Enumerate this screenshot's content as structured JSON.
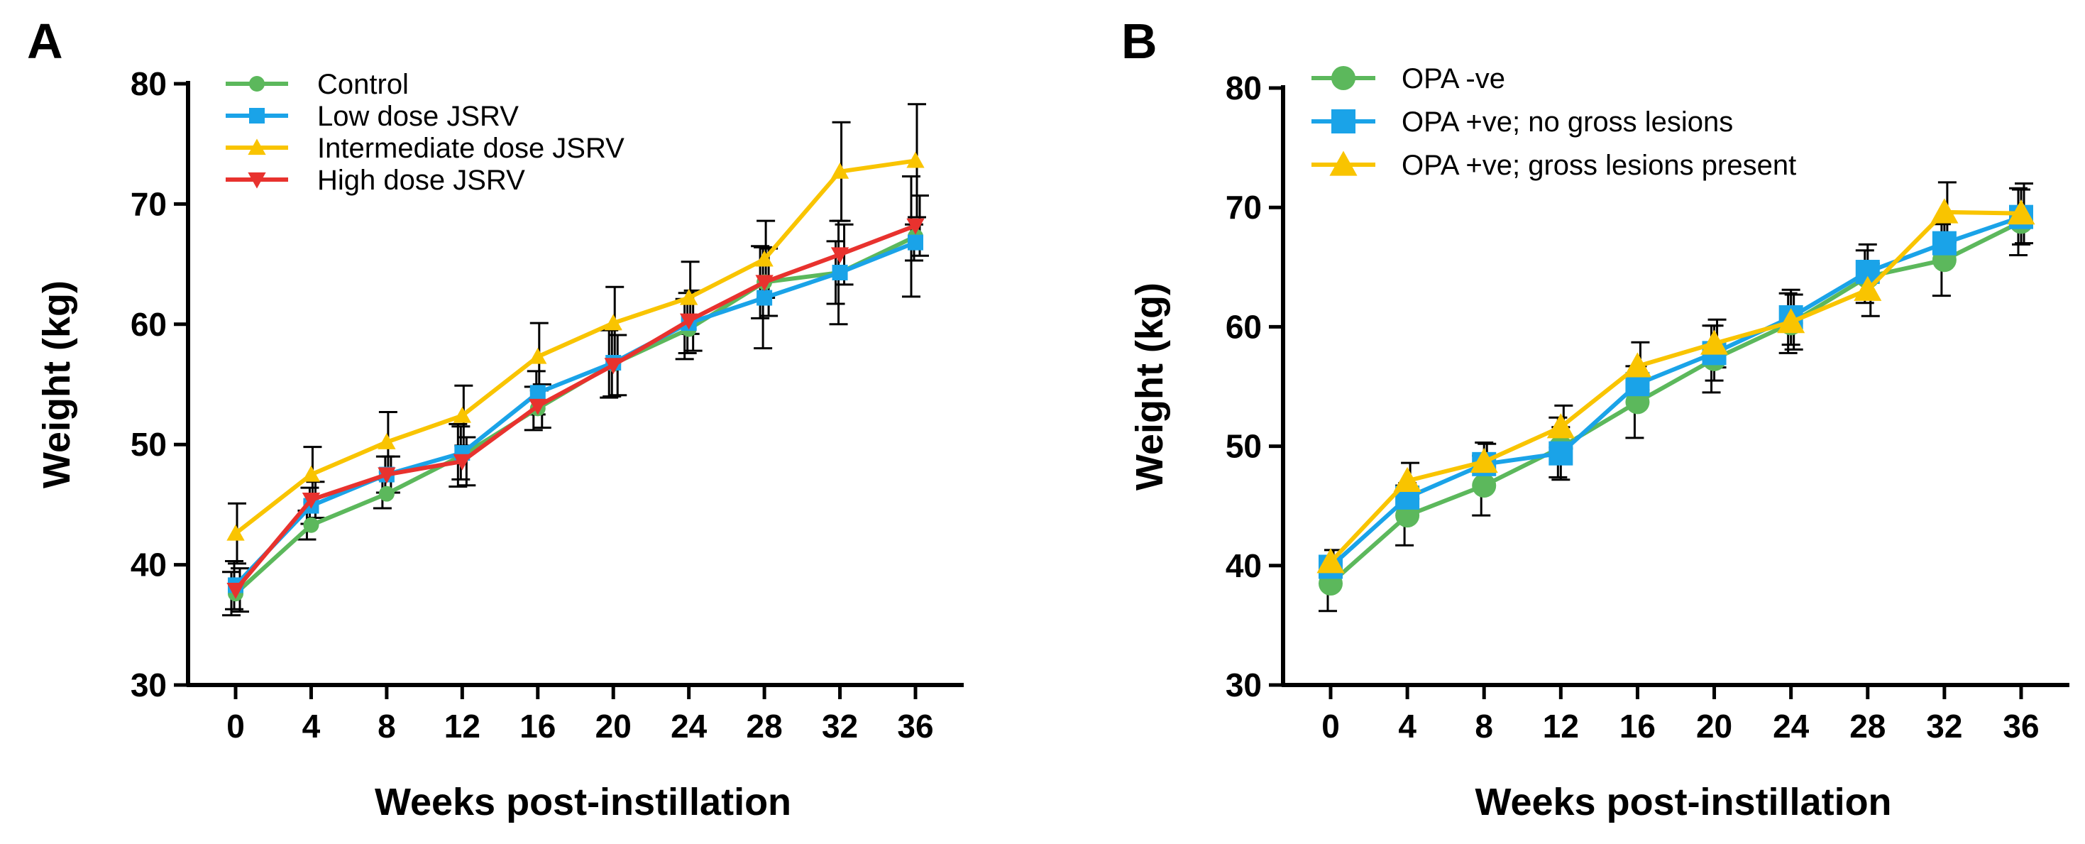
{
  "chart_data": [
    {
      "type": "line",
      "panel_label": "A",
      "xlabel": "Weeks post-instillation",
      "ylabel": "Weight (kg)",
      "ylim": [
        30,
        80
      ],
      "yticks": [
        30,
        40,
        50,
        60,
        70,
        80
      ],
      "x": [
        0,
        4,
        8,
        12,
        16,
        20,
        24,
        28,
        32,
        36
      ],
      "legend_position": "top-left",
      "series": [
        {
          "name": "Control",
          "color": "#5cb85c",
          "marker": "circle",
          "marker_size": "small",
          "values": [
            37.6,
            43.3,
            45.9,
            49.1,
            53.0,
            56.7,
            59.6,
            63.5,
            64.3,
            67.3
          ],
          "errors": [
            1.8,
            1.2,
            1.2,
            2.6,
            1.8,
            2.8,
            2.5,
            3.0,
            2.6,
            5.0
          ]
        },
        {
          "name": "Low dose JSRV",
          "color": "#1aa3e8",
          "marker": "square",
          "marker_size": "small",
          "values": [
            38.3,
            44.9,
            47.5,
            49.3,
            54.3,
            56.8,
            60.1,
            62.2,
            64.3,
            66.8
          ],
          "errors": [
            2.0,
            1.5,
            1.5,
            2.2,
            1.8,
            2.8,
            2.5,
            4.2,
            4.3,
            1.5
          ]
        },
        {
          "name": "Intermediate dose JSRV",
          "color": "#f9c400",
          "marker": "triangle-up",
          "marker_size": "small",
          "values": [
            42.6,
            47.5,
            50.2,
            52.4,
            57.3,
            60.1,
            62.2,
            65.4,
            72.7,
            73.6
          ],
          "errors": [
            2.5,
            2.3,
            2.5,
            2.5,
            2.8,
            3.0,
            3.0,
            3.2,
            4.1,
            4.7
          ]
        },
        {
          "name": "High dose JSRV",
          "color": "#e8322e",
          "marker": "triangle-down",
          "marker_size": "small",
          "values": [
            37.9,
            45.4,
            47.5,
            48.6,
            53.2,
            56.6,
            60.3,
            63.5,
            65.8,
            68.2
          ],
          "errors": [
            1.8,
            1.5,
            1.5,
            2.0,
            1.8,
            2.5,
            2.5,
            2.8,
            2.5,
            2.5
          ]
        }
      ]
    },
    {
      "type": "line",
      "panel_label": "B",
      "xlabel": "Weeks post-instillation",
      "ylabel": "Weight (kg)",
      "ylim": [
        30,
        80
      ],
      "yticks": [
        30,
        40,
        50,
        60,
        70,
        80
      ],
      "x": [
        0,
        4,
        8,
        12,
        16,
        20,
        24,
        28,
        32,
        36
      ],
      "legend_position": "top-left",
      "series": [
        {
          "name": "OPA -ve",
          "color": "#5cb85c",
          "marker": "circle",
          "marker_size": "large",
          "values": [
            38.5,
            44.2,
            46.7,
            49.9,
            53.7,
            57.3,
            60.3,
            64.2,
            65.6,
            68.8
          ],
          "errors": [
            2.3,
            2.5,
            2.5,
            2.5,
            3.0,
            2.8,
            2.5,
            2.2,
            3.0,
            2.8
          ]
        },
        {
          "name": "OPA +ve; no gross lesions",
          "color": "#1aa3e8",
          "marker": "square",
          "marker_size": "large",
          "values": [
            39.9,
            45.7,
            48.5,
            49.4,
            55.2,
            57.8,
            60.8,
            64.6,
            67.0,
            69.2
          ],
          "errors": [
            0.7,
            1.2,
            1.8,
            2.2,
            1.5,
            2.3,
            2.3,
            2.3,
            1.8,
            2.3
          ]
        },
        {
          "name": "OPA +ve; gross lesions present",
          "color": "#f9c400",
          "marker": "triangle-up",
          "marker_size": "large",
          "values": [
            40.3,
            47.1,
            48.7,
            51.6,
            56.7,
            58.6,
            60.4,
            63.1,
            69.6,
            69.5
          ],
          "errors": [
            1.0,
            1.5,
            1.5,
            1.8,
            2.0,
            2.0,
            2.3,
            2.2,
            2.5,
            2.5
          ]
        }
      ]
    }
  ]
}
